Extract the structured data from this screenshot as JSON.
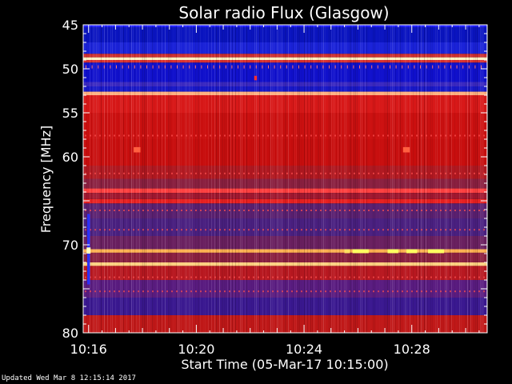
{
  "chart_data": {
    "type": "heatmap",
    "title": "Solar radio Flux (Glasgow)",
    "xlabel": "Start Time (05-Mar-17 10:15:00)",
    "ylabel": "Frequency [MHz]",
    "x_unit": "minutes after 10:15:00",
    "xlim": [
      0.8,
      15.8
    ],
    "ylim": [
      80,
      45
    ],
    "x_ticks": [
      {
        "value": 1,
        "label": "10:16"
      },
      {
        "value": 5,
        "label": "10:20"
      },
      {
        "value": 9,
        "label": "10:24"
      },
      {
        "value": 13,
        "label": "10:28"
      }
    ],
    "y_ticks": [
      {
        "value": 45,
        "label": "45"
      },
      {
        "value": 50,
        "label": "50"
      },
      {
        "value": 55,
        "label": "55"
      },
      {
        "value": 60,
        "label": "60"
      },
      {
        "value": 70,
        "label": "70"
      },
      {
        "value": 80,
        "label": "80"
      }
    ],
    "colors": {
      "low": "#1010c8",
      "mid": "#c81010",
      "high": "#ffff60",
      "background": "#000000",
      "axes": "#ffffff"
    },
    "bands": [
      {
        "from": 45.0,
        "to": 45.3,
        "color": "#2020ff"
      },
      {
        "from": 45.3,
        "to": 47.0,
        "color": "#0a14c0"
      },
      {
        "from": 47.0,
        "to": 48.3,
        "color": "#1a22d8"
      },
      {
        "from": 48.3,
        "to": 48.7,
        "color": "#d03030"
      },
      {
        "from": 48.7,
        "to": 49.0,
        "color": "#fff0c0"
      },
      {
        "from": 49.0,
        "to": 49.3,
        "color": "#d83030"
      },
      {
        "from": 49.3,
        "to": 51.5,
        "color": "#1010cc"
      },
      {
        "from": 51.5,
        "to": 52.0,
        "color": "#3a28c0"
      },
      {
        "from": 52.0,
        "to": 52.6,
        "color": "#1818c8"
      },
      {
        "from": 52.6,
        "to": 53.0,
        "color": "#ffb080"
      },
      {
        "from": 53.0,
        "to": 55.0,
        "color": "#d81818"
      },
      {
        "from": 55.0,
        "to": 58.0,
        "color": "#cc1010"
      },
      {
        "from": 58.0,
        "to": 61.0,
        "color": "#c80e0e"
      },
      {
        "from": 61.0,
        "to": 62.5,
        "color": "#b01820"
      },
      {
        "from": 62.5,
        "to": 63.6,
        "color": "#8a2040"
      },
      {
        "from": 63.6,
        "to": 64.1,
        "color": "#ff4040"
      },
      {
        "from": 64.1,
        "to": 64.8,
        "color": "#a01830"
      },
      {
        "from": 64.8,
        "to": 65.3,
        "color": "#e82020"
      },
      {
        "from": 65.3,
        "to": 67.0,
        "color": "#5a2070"
      },
      {
        "from": 67.0,
        "to": 69.0,
        "color": "#4a2080"
      },
      {
        "from": 69.0,
        "to": 70.5,
        "color": "#6a2060"
      },
      {
        "from": 70.5,
        "to": 70.9,
        "color": "#ffb050"
      },
      {
        "from": 70.9,
        "to": 72.0,
        "color": "#8a2040"
      },
      {
        "from": 72.0,
        "to": 72.4,
        "color": "#ffd080"
      },
      {
        "from": 72.4,
        "to": 74.0,
        "color": "#b81820"
      },
      {
        "from": 74.0,
        "to": 76.0,
        "color": "#5a1c80"
      },
      {
        "from": 76.0,
        "to": 78.0,
        "color": "#3a1890"
      },
      {
        "from": 78.0,
        "to": 80.0,
        "color": "#c01818"
      }
    ],
    "bursts": [
      {
        "x": 2.8,
        "y_from": 58.9,
        "y_to": 59.5,
        "width": 0.25,
        "color": "#ff6040"
      },
      {
        "x": 12.8,
        "y_from": 58.9,
        "y_to": 59.5,
        "width": 0.25,
        "color": "#ff6040"
      },
      {
        "x": 7.2,
        "y_from": 50.8,
        "y_to": 51.3,
        "width": 0.1,
        "color": "#ff3030"
      },
      {
        "x": 1.0,
        "y_from": 66.5,
        "y_to": 74.5,
        "width": 0.1,
        "color": "#2a30ff"
      },
      {
        "x": 1.0,
        "y_from": 70.3,
        "y_to": 71.0,
        "width": 0.15,
        "color": "#ffffc0"
      },
      {
        "x": 11.1,
        "y_from": 70.5,
        "y_to": 70.95,
        "width": 0.6,
        "color": "#ffff60"
      },
      {
        "x": 12.3,
        "y_from": 70.5,
        "y_to": 70.95,
        "width": 0.4,
        "color": "#ffff60"
      },
      {
        "x": 13.0,
        "y_from": 70.5,
        "y_to": 70.95,
        "width": 0.4,
        "color": "#ffff60"
      },
      {
        "x": 13.9,
        "y_from": 70.5,
        "y_to": 70.95,
        "width": 0.6,
        "color": "#ffff60"
      },
      {
        "x": 10.6,
        "y_from": 70.5,
        "y_to": 70.95,
        "width": 0.2,
        "color": "#ffe060"
      }
    ]
  },
  "footer": {
    "updated": "Updated Wed Mar  8 12:15:14 2017"
  }
}
